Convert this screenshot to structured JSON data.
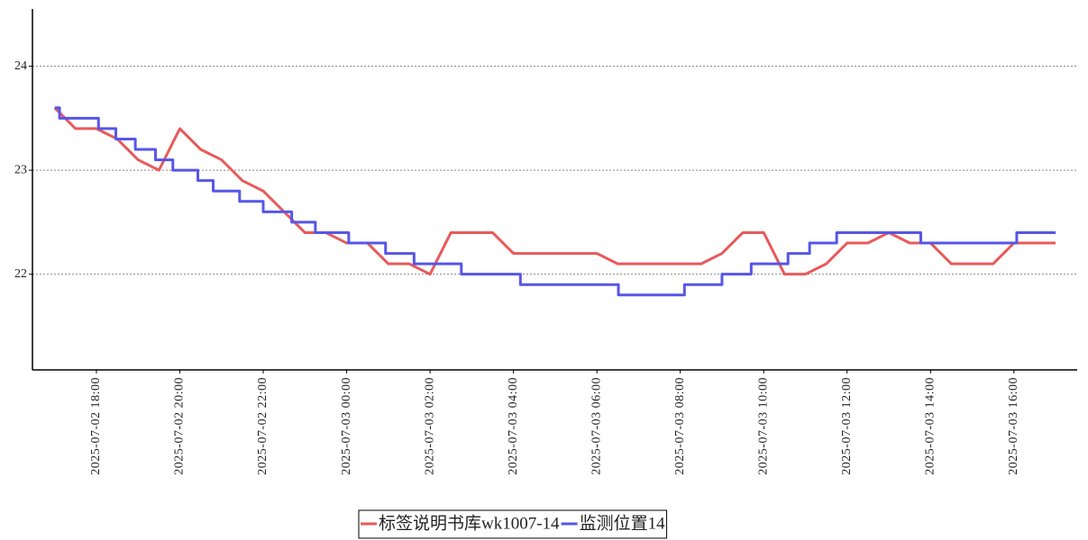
{
  "chart_data": {
    "type": "line",
    "series": [
      {
        "name": "标签说明书库wk1007-14",
        "color": "#e85a5a",
        "x": [
          "2025-07-02 17:00",
          "2025-07-02 17:30",
          "2025-07-02 18:00",
          "2025-07-02 18:30",
          "2025-07-02 19:00",
          "2025-07-02 19:30",
          "2025-07-02 20:00",
          "2025-07-02 20:30",
          "2025-07-02 21:00",
          "2025-07-02 21:30",
          "2025-07-02 22:00",
          "2025-07-02 22:30",
          "2025-07-02 23:00",
          "2025-07-02 23:30",
          "2025-07-03 00:00",
          "2025-07-03 00:30",
          "2025-07-03 01:00",
          "2025-07-03 01:30",
          "2025-07-03 02:00",
          "2025-07-03 02:30",
          "2025-07-03 03:00",
          "2025-07-03 03:30",
          "2025-07-03 04:00",
          "2025-07-03 04:30",
          "2025-07-03 05:00",
          "2025-07-03 05:30",
          "2025-07-03 06:00",
          "2025-07-03 06:30",
          "2025-07-03 07:00",
          "2025-07-03 07:30",
          "2025-07-03 08:00",
          "2025-07-03 08:30",
          "2025-07-03 09:00",
          "2025-07-03 09:30",
          "2025-07-03 10:00",
          "2025-07-03 10:30",
          "2025-07-03 11:00",
          "2025-07-03 11:30",
          "2025-07-03 12:00",
          "2025-07-03 12:30",
          "2025-07-03 13:00",
          "2025-07-03 13:30",
          "2025-07-03 14:00",
          "2025-07-03 14:30",
          "2025-07-03 15:00",
          "2025-07-03 15:30",
          "2025-07-03 16:00",
          "2025-07-03 16:30",
          "2025-07-03 17:00"
        ],
        "values": [
          23.6,
          23.4,
          23.4,
          23.3,
          23.1,
          23.0,
          23.4,
          23.2,
          23.1,
          22.9,
          22.8,
          22.6,
          22.4,
          22.4,
          22.3,
          22.3,
          22.1,
          22.1,
          22.0,
          22.4,
          22.4,
          22.4,
          22.2,
          22.2,
          22.2,
          22.2,
          22.2,
          22.1,
          22.1,
          22.1,
          22.1,
          22.1,
          22.2,
          22.4,
          22.4,
          22.0,
          22.0,
          22.1,
          22.3,
          22.3,
          22.4,
          22.3,
          22.3,
          22.1,
          22.1,
          22.1,
          22.3,
          22.3,
          22.3
        ]
      },
      {
        "name": "监测位置14",
        "color": "#5656e8",
        "x": [
          "2025-07-02 17:00",
          "2025-07-02 17:07",
          "2025-07-02 17:07",
          "2025-07-02 18:03",
          "2025-07-02 18:03",
          "2025-07-02 18:28",
          "2025-07-02 18:28",
          "2025-07-02 18:56",
          "2025-07-02 18:56",
          "2025-07-02 19:25",
          "2025-07-02 19:25",
          "2025-07-02 19:50",
          "2025-07-02 19:50",
          "2025-07-02 20:26",
          "2025-07-02 20:26",
          "2025-07-02 20:48",
          "2025-07-02 20:48",
          "2025-07-02 21:26",
          "2025-07-02 21:26",
          "2025-07-02 22:00",
          "2025-07-02 22:00",
          "2025-07-02 22:41",
          "2025-07-02 22:41",
          "2025-07-02 23:15",
          "2025-07-02 23:15",
          "2025-07-03 00:03",
          "2025-07-03 00:03",
          "2025-07-03 00:56",
          "2025-07-03 00:56",
          "2025-07-03 01:37",
          "2025-07-03 01:37",
          "2025-07-03 02:45",
          "2025-07-03 02:45",
          "2025-07-03 04:10",
          "2025-07-03 04:10",
          "2025-07-03 06:31",
          "2025-07-03 06:31",
          "2025-07-03 08:06",
          "2025-07-03 08:06",
          "2025-07-03 09:00",
          "2025-07-03 09:00",
          "2025-07-03 09:42",
          "2025-07-03 09:42",
          "2025-07-03 10:35",
          "2025-07-03 10:35",
          "2025-07-03 11:06",
          "2025-07-03 11:06",
          "2025-07-03 11:45",
          "2025-07-03 11:45",
          "2025-07-03 13:46",
          "2025-07-03 13:46",
          "2025-07-03 16:04",
          "2025-07-03 16:04",
          "2025-07-03 17:00"
        ],
        "values": [
          23.6,
          23.6,
          23.5,
          23.5,
          23.4,
          23.4,
          23.3,
          23.3,
          23.2,
          23.2,
          23.1,
          23.1,
          23.0,
          23.0,
          22.9,
          22.9,
          22.8,
          22.8,
          22.7,
          22.7,
          22.6,
          22.6,
          22.5,
          22.5,
          22.4,
          22.4,
          22.3,
          22.3,
          22.2,
          22.2,
          22.1,
          22.1,
          22.0,
          22.0,
          21.9,
          21.9,
          21.8,
          21.8,
          21.9,
          21.9,
          22.0,
          22.0,
          22.1,
          22.1,
          22.2,
          22.2,
          22.3,
          22.3,
          22.4,
          22.4,
          22.3,
          22.3,
          22.4,
          22.4
        ]
      }
    ],
    "xlim": [
      "2025-07-02 16:28",
      "2025-07-03 17:31"
    ],
    "xticks": [
      "2025-07-02 18:00",
      "2025-07-02 20:00",
      "2025-07-02 22:00",
      "2025-07-03 00:00",
      "2025-07-03 02:00",
      "2025-07-03 04:00",
      "2025-07-03 06:00",
      "2025-07-03 08:00",
      "2025-07-03 10:00",
      "2025-07-03 12:00",
      "2025-07-03 14:00",
      "2025-07-03 16:00"
    ],
    "ylim": [
      21.08,
      24.55
    ],
    "yticks": [
      22,
      23,
      24
    ],
    "grid": true
  }
}
